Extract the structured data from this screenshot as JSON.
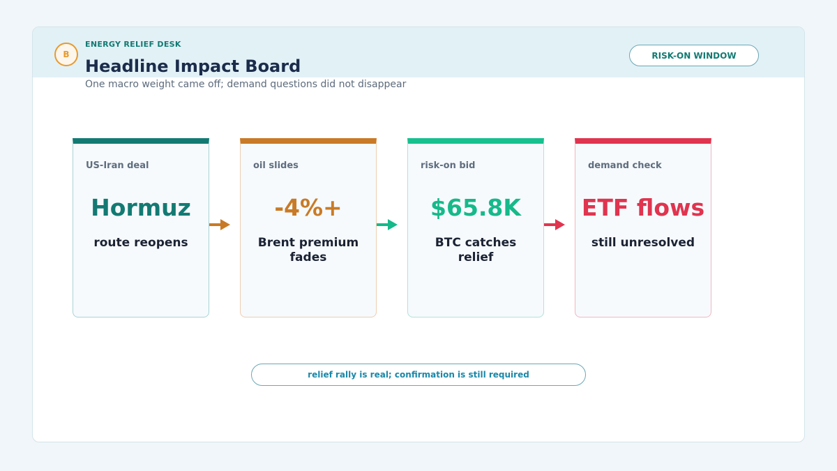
{
  "header": {
    "badge": "B",
    "kicker": "ENERGY RELIEF DESK",
    "title": "Headline Impact Board",
    "subtitle": "One macro weight came off; demand questions did not disappear",
    "pill": "RISK-ON WINDOW"
  },
  "cards": [
    {
      "label": "US-Iran deal",
      "headline": "Hormuz",
      "caption": "route reopens"
    },
    {
      "label": "oil slides",
      "headline": "-4%+",
      "caption": "Brent premium fades"
    },
    {
      "label": "risk-on bid",
      "headline": "$65.8K",
      "caption": "BTC catches relief"
    },
    {
      "label": "demand check",
      "headline": "ETF flows",
      "caption": "still unresolved"
    }
  ],
  "footer": "relief rally is real; confirmation is still required"
}
